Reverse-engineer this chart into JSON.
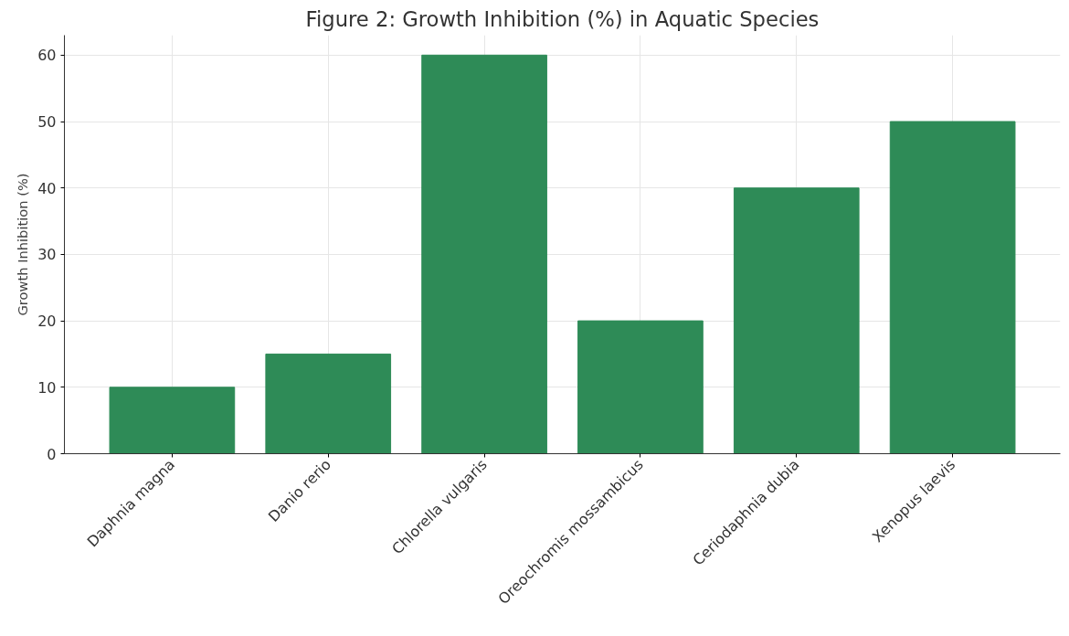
{
  "chart_data": {
    "type": "bar",
    "title": "Figure 2: Growth Inhibition (%) in Aquatic Species",
    "ylabel": "Growth Inhibition (%)",
    "categories": [
      "Daphnia magna",
      "Danio rerio",
      "Chlorella vulgaris",
      "Oreochromis mossambicus",
      "Ceriodaphnia dubia",
      "Xenopus laevis"
    ],
    "values": [
      10,
      15,
      60,
      20,
      40,
      50
    ],
    "color": "#2e8b57",
    "ylim": [
      0,
      63
    ],
    "yticks": [
      0,
      10,
      20,
      30,
      40,
      50,
      60
    ],
    "grid": true
  }
}
